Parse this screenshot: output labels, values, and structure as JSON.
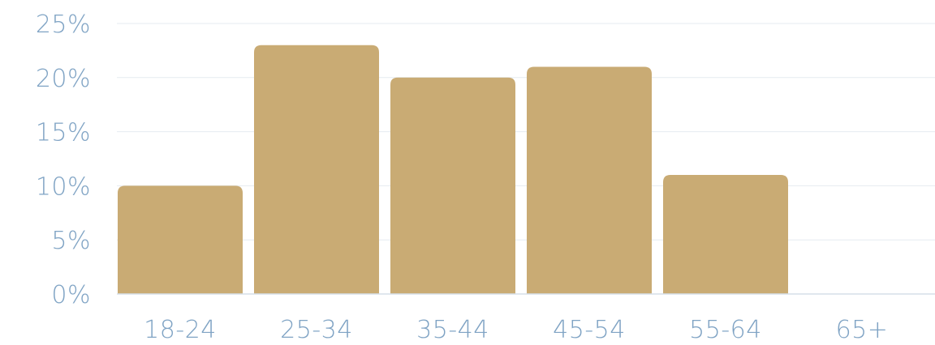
{
  "chart_data": {
    "type": "bar",
    "categories": [
      "18-24",
      "25-34",
      "35-44",
      "45-54",
      "55-64",
      "65+"
    ],
    "values": [
      10,
      23,
      20,
      21,
      11,
      0
    ],
    "ylim": [
      0,
      25
    ],
    "yticks": [
      "0%",
      "5%",
      "10%",
      "15%",
      "20%",
      "25%"
    ],
    "title": "",
    "xlabel": "",
    "ylabel": "",
    "grid": true,
    "legend": "none"
  },
  "colors": {
    "bar": "#C9AB74",
    "axis_text": "#7FA3C4"
  }
}
